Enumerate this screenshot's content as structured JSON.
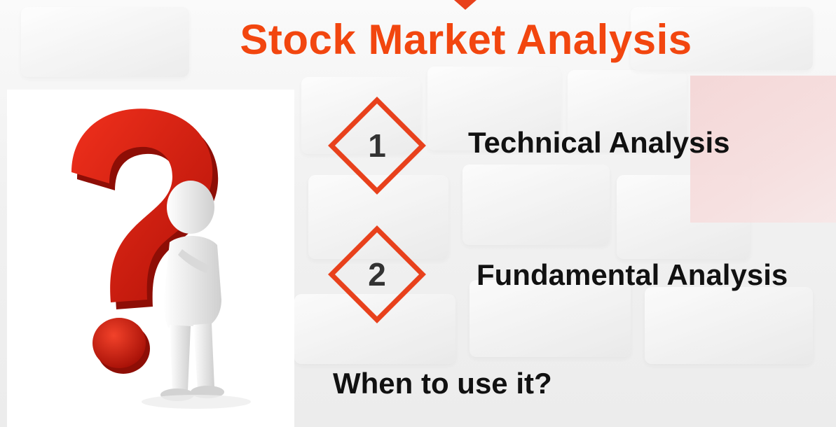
{
  "slide": {
    "title": "Stock Market Analysis",
    "items": [
      {
        "number": "1",
        "label": "Technical Analysis"
      },
      {
        "number": "2",
        "label": "Fundamental Analysis"
      }
    ],
    "question": "When to use it?"
  },
  "colors": {
    "accent": "#f2460f",
    "diamond_border": "#e8411c",
    "text_dark": "#111111",
    "number_text": "#333333",
    "question_mark_red": "#d81e10"
  },
  "icons": {
    "illustration": "thinking-figure-question-mark-icon",
    "marker": "triangle-marker-icon"
  }
}
